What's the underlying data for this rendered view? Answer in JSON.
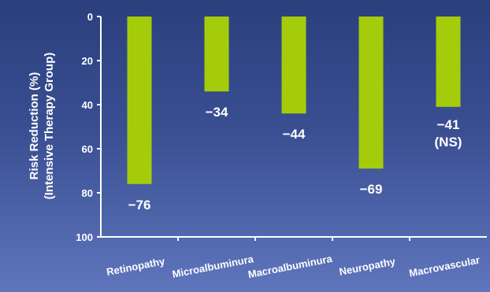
{
  "chart_data": {
    "type": "bar",
    "ylabel_lines": [
      "Risk Reduction (%)",
      "(Intensive Therapy Group)"
    ],
    "categories": [
      "Retinopathy",
      "Microalbuminura",
      "Macroalbuminura",
      "Neuropathy",
      "Macrovascular"
    ],
    "values": [
      76,
      34,
      44,
      69,
      41
    ],
    "data_labels": [
      "−76",
      "−34",
      "−44",
      "−69",
      "−41"
    ],
    "data_label_notes": [
      "",
      "",
      "",
      "",
      "(NS)"
    ],
    "y_ticks": [
      0,
      20,
      40,
      60,
      80,
      100
    ],
    "ylim": [
      0,
      100
    ],
    "y_inverted": true,
    "bar_color": "#a4cc0a",
    "axis_color": "#ffffff"
  }
}
